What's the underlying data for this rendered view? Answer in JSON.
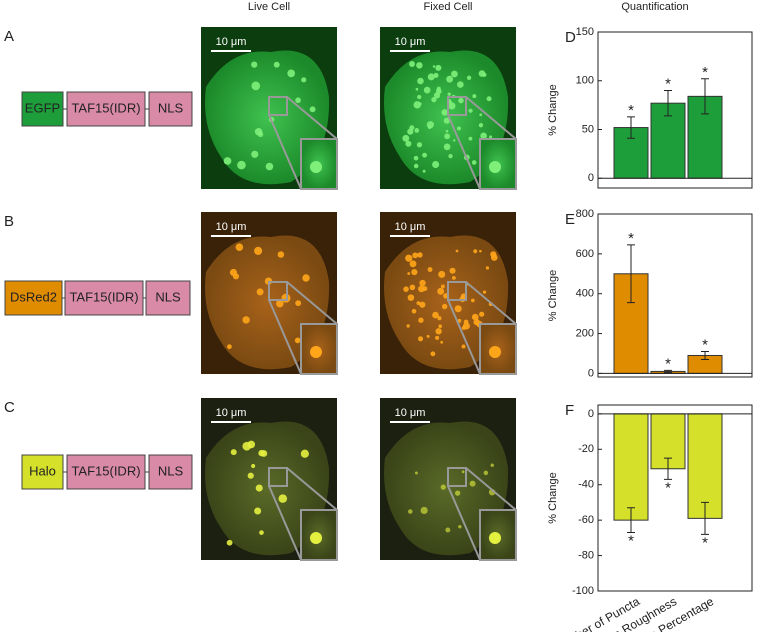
{
  "columns": [
    "Live Cell",
    "Fixed Cell",
    "Quantification"
  ],
  "rows": [
    {
      "letter": "A",
      "construct": [
        "EGFP",
        "TAF15(IDR)",
        "NLS"
      ]
    },
    {
      "letter": "B",
      "construct": [
        "DsRed2",
        "TAF15(IDR)",
        "NLS"
      ]
    },
    {
      "letter": "C",
      "construct": [
        "Halo",
        "TAF15(IDR)",
        "NLS"
      ]
    }
  ],
  "scale_bar": "10 μm",
  "chart_data": [
    {
      "type": "bar",
      "panel": "D",
      "ylabel": "% Change",
      "color": "#1e9e3a",
      "values": [
        52,
        77,
        84
      ],
      "errors": [
        11,
        13,
        18
      ],
      "sig_label": "*",
      "ylim": [
        -10,
        150
      ],
      "yticks": [
        0,
        50,
        100,
        150
      ]
    },
    {
      "type": "bar",
      "panel": "E",
      "ylabel": "% Change",
      "color": "#e08c00",
      "values": [
        500,
        10,
        90
      ],
      "errors": [
        145,
        5,
        20
      ],
      "sig_label": "*",
      "ylim": [
        -18,
        800
      ],
      "yticks": [
        0,
        200,
        400,
        600,
        800
      ]
    },
    {
      "type": "bar",
      "panel": "F",
      "ylabel": "% Change",
      "color": "#d4e02a",
      "categories": [
        "Number of Puncta",
        "Surface Roughness",
        "Punctate Percentage"
      ],
      "values": [
        -60,
        -31,
        -59
      ],
      "errors": [
        7,
        6,
        9
      ],
      "sig_label": "*",
      "ylim": [
        -100,
        5
      ],
      "yticks": [
        -100,
        -80,
        -60,
        -40,
        -20,
        0
      ]
    }
  ]
}
